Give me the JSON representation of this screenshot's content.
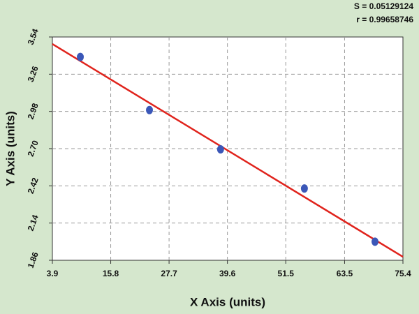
{
  "chart_data": {
    "type": "scatter",
    "annotations": [
      "S = 0.05129124",
      "r = 0.99658746"
    ],
    "xlabel": "X Axis (units)",
    "ylabel": "Y Axis (units)",
    "x": [
      9.6,
      23.7,
      38.2,
      55.3,
      69.7
    ],
    "values": [
      3.39,
      2.99,
      2.695,
      2.4,
      2.0
    ],
    "color": "#3b57b8",
    "fit": {
      "x": [
        3.9,
        75.4
      ],
      "y": [
        3.487,
        1.886
      ],
      "color": "#e0231c"
    },
    "xlim": [
      3.9,
      75.4
    ],
    "xticks": [
      3.9,
      15.8,
      27.7,
      39.6,
      51.5,
      63.5,
      75.4
    ],
    "ylim": [
      1.86,
      3.54
    ],
    "yticks": [
      1.86,
      2.14,
      2.42,
      {
        "value": 2.7,
        "label": "2.70"
      },
      2.98,
      3.26,
      3.54
    ],
    "grid": true
  }
}
